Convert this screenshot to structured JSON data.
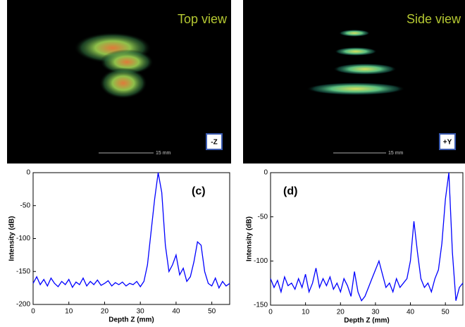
{
  "images": [
    {
      "title": "Top view",
      "axis_label": "-Z",
      "scale": "15 mm"
    },
    {
      "title": "Side view",
      "axis_label": "+Y",
      "scale": "15 mm"
    }
  ],
  "chart_data": [
    {
      "type": "line",
      "annotation": "(c)",
      "x_label": "Depth Z (mm)",
      "y_label": "Intensity (dB)",
      "color": "#0000ff",
      "x": [
        0,
        1,
        2,
        3,
        4,
        5,
        6,
        7,
        8,
        9,
        10,
        11,
        12,
        13,
        14,
        15,
        16,
        17,
        18,
        19,
        20,
        21,
        22,
        23,
        24,
        25,
        26,
        27,
        28,
        29,
        30,
        31,
        32,
        33,
        34,
        35,
        36,
        37,
        38,
        39,
        40,
        41,
        42,
        43,
        44,
        45,
        46,
        47,
        48,
        49,
        50,
        51,
        52,
        53,
        54,
        55
      ],
      "values": [
        -168,
        -158,
        -170,
        -162,
        -172,
        -160,
        -168,
        -173,
        -165,
        -170,
        -162,
        -174,
        -166,
        -170,
        -160,
        -172,
        -165,
        -170,
        -163,
        -171,
        -168,
        -164,
        -172,
        -167,
        -170,
        -166,
        -172,
        -168,
        -170,
        -165,
        -173,
        -165,
        -140,
        -90,
        -40,
        0,
        -30,
        -110,
        -150,
        -140,
        -125,
        -155,
        -145,
        -165,
        -158,
        -135,
        -105,
        -110,
        -150,
        -168,
        -172,
        -160,
        -175,
        -165,
        -172,
        -168
      ],
      "xlim": [
        0,
        55
      ],
      "xticks": [
        0,
        10,
        20,
        30,
        40,
        50
      ],
      "ylim": [
        -200,
        0
      ],
      "yticks": [
        0,
        -50,
        -100,
        -150,
        -200
      ]
    },
    {
      "type": "line",
      "annotation": "(d)",
      "x_label": "Depth Z (mm)",
      "y_label": "Intensity (dB)",
      "color": "#0000ff",
      "x": [
        0,
        1,
        2,
        3,
        4,
        5,
        6,
        7,
        8,
        9,
        10,
        11,
        12,
        13,
        14,
        15,
        16,
        17,
        18,
        19,
        20,
        21,
        22,
        23,
        24,
        25,
        26,
        27,
        28,
        29,
        30,
        31,
        32,
        33,
        34,
        35,
        36,
        37,
        38,
        39,
        40,
        41,
        42,
        43,
        44,
        45,
        46,
        47,
        48,
        49,
        50,
        51,
        52,
        53,
        54,
        55
      ],
      "values": [
        -120,
        -130,
        -122,
        -135,
        -118,
        -128,
        -125,
        -132,
        -120,
        -130,
        -115,
        -135,
        -125,
        -108,
        -130,
        -120,
        -128,
        -118,
        -132,
        -125,
        -135,
        -120,
        -128,
        -140,
        -112,
        -135,
        -145,
        -140,
        -130,
        -120,
        -110,
        -100,
        -115,
        -130,
        -125,
        -135,
        -120,
        -130,
        -125,
        -120,
        -100,
        -55,
        -90,
        -120,
        -130,
        -125,
        -135,
        -120,
        -110,
        -80,
        -30,
        0,
        -90,
        -145,
        -130,
        -125
      ],
      "xlim": [
        0,
        55
      ],
      "xticks": [
        0,
        10,
        20,
        30,
        40,
        50
      ],
      "ylim": [
        -150,
        0
      ],
      "yticks": [
        0,
        -50,
        -100,
        -150
      ]
    }
  ]
}
